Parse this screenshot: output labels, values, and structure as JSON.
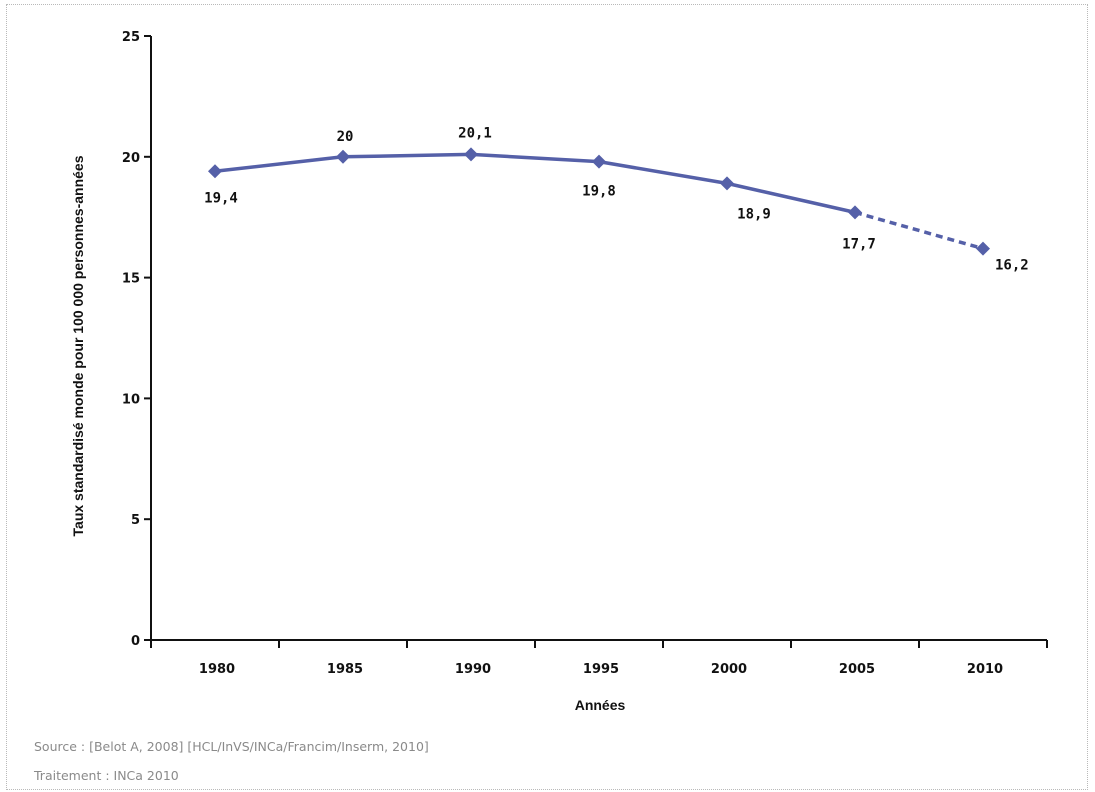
{
  "chart_data": {
    "type": "line",
    "title": "",
    "xlabel": "Années",
    "ylabel": "Taux standardisé monde pour 100 000 personnes-années",
    "x": [
      1980,
      1985,
      1990,
      1995,
      2000,
      2005,
      2010
    ],
    "x_tick_labels": [
      "1980",
      "1985",
      "1990",
      "1995",
      "2000",
      "2005",
      "2010"
    ],
    "ylim": [
      0,
      25
    ],
    "y_ticks": [
      0,
      5,
      10,
      15,
      20,
      25
    ],
    "y_tick_labels": [
      "0",
      "5",
      "10",
      "15",
      "20",
      "25"
    ],
    "grid": false,
    "legend": "none",
    "series": [
      {
        "values": [
          19.4,
          20,
          20.1,
          19.8,
          18.9,
          17.7,
          16.2
        ],
        "data_labels": [
          "19,4",
          "20",
          "20,1",
          "19,8",
          "18,9",
          "17,7",
          "16,2"
        ],
        "color": "#5560a8",
        "marker": "diamond",
        "projected_from_index": 5
      }
    ]
  },
  "notes": {
    "source": "Source : [Belot A, 2008] [HCL/InVS/INCa/Francim/Inserm, 2010]",
    "credit": "Traitement : INCa 2010"
  }
}
